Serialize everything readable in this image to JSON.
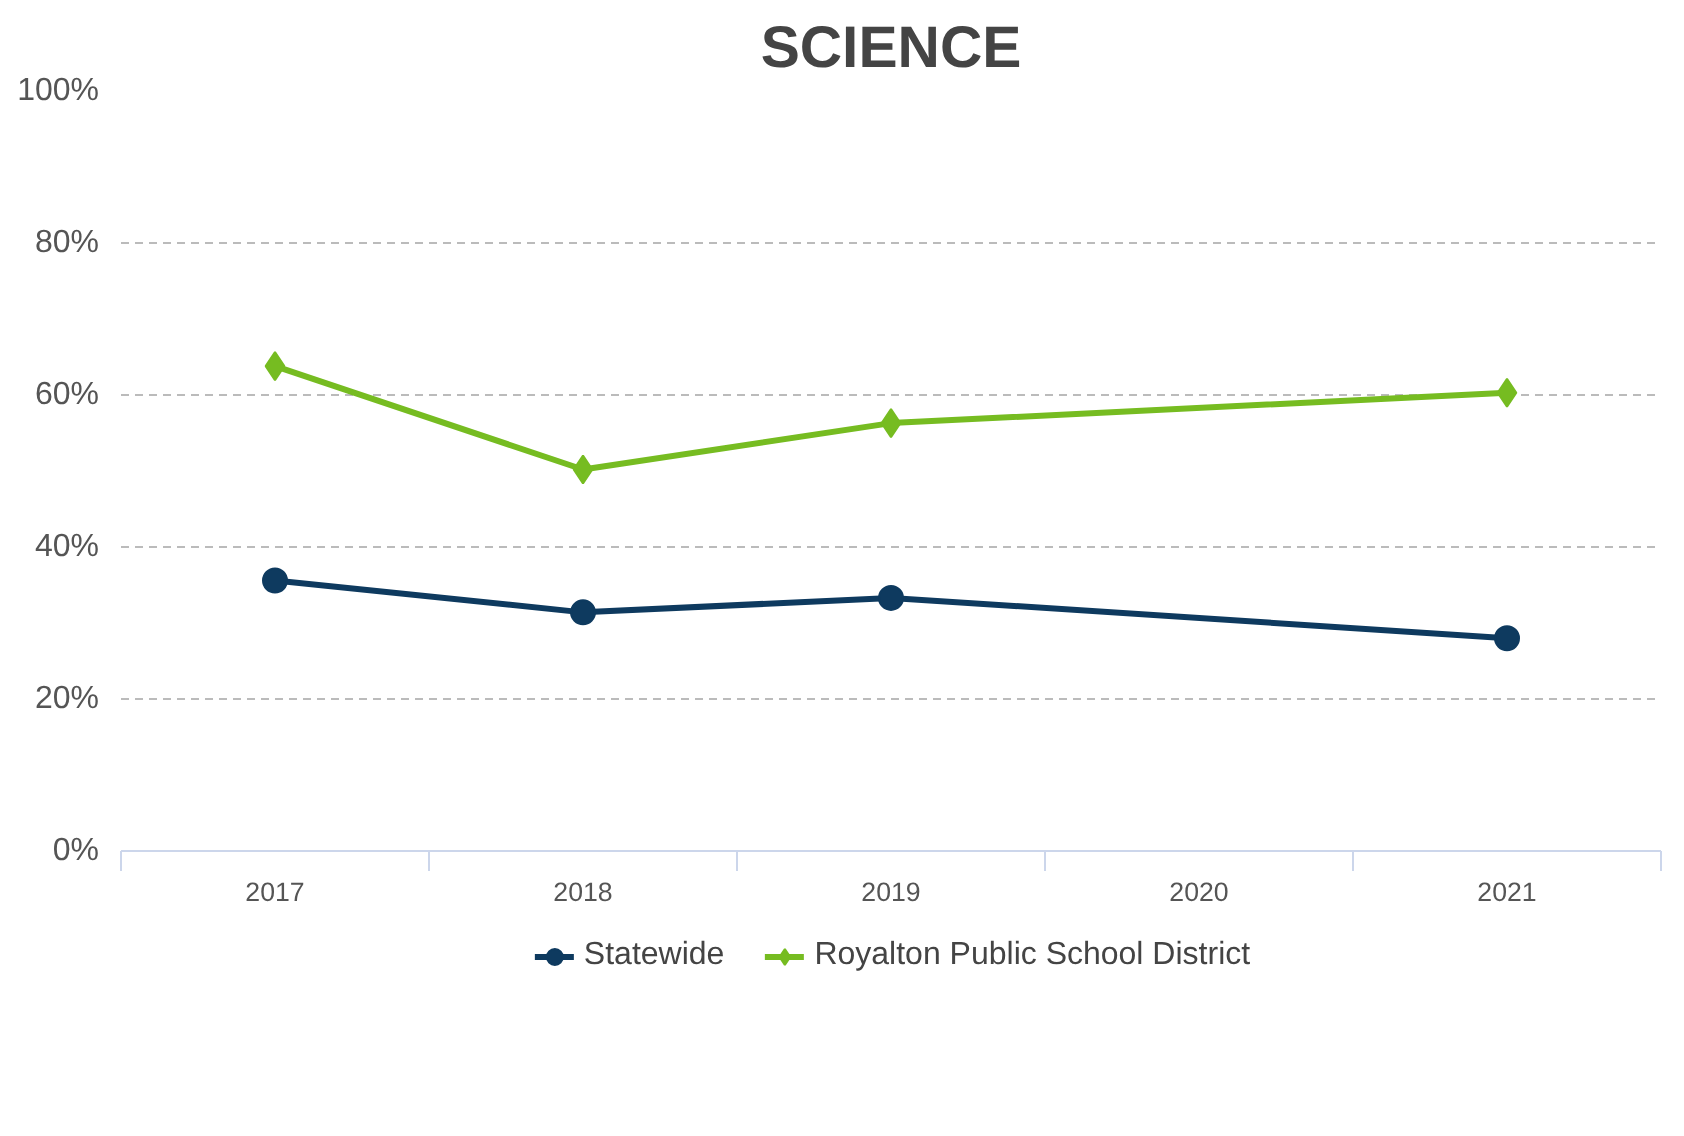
{
  "chart_data": {
    "type": "line",
    "title": "SCIENCE",
    "categories": [
      "2017",
      "2018",
      "2019",
      "2020",
      "2021"
    ],
    "series": [
      {
        "name": "Statewide",
        "color": "#0e3a5f",
        "marker": "circle",
        "values": [
          35.6,
          31.4,
          33.3,
          null,
          28.0
        ]
      },
      {
        "name": "Royalton Public School District",
        "color": "#76bc21",
        "marker": "diamond",
        "values": [
          63.8,
          50.2,
          56.3,
          null,
          60.3
        ]
      }
    ],
    "ylim": [
      0,
      100
    ],
    "yticks": [
      {
        "value": 0,
        "label": "0%"
      },
      {
        "value": 20,
        "label": "20%"
      },
      {
        "value": 40,
        "label": "40%"
      },
      {
        "value": 60,
        "label": "60%"
      },
      {
        "value": 80,
        "label": "80%"
      },
      {
        "value": 100,
        "label": "100%"
      }
    ],
    "grid": "y",
    "legend": "bottom",
    "line_style": "solid"
  }
}
